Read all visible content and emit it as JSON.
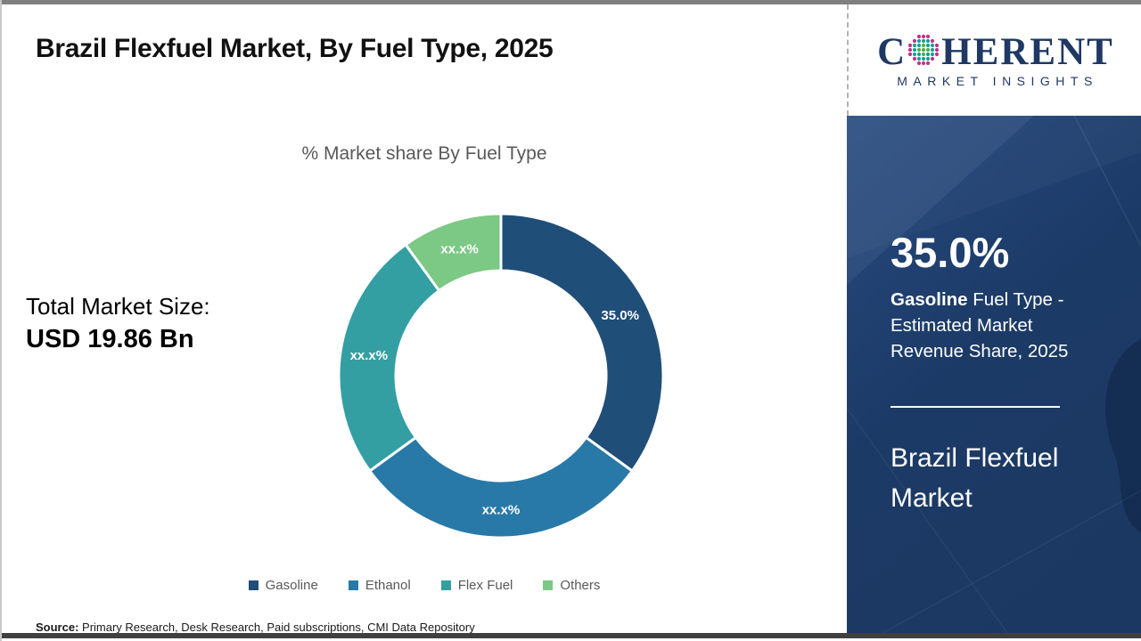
{
  "page": {
    "title": "Brazil Flexfuel Market, By Fuel Type, 2025",
    "source_label": "Source:",
    "source_text": " Primary Research, Desk Research, Paid subscriptions, CMI Data Repository"
  },
  "market_size": {
    "label": "Total Market Size:",
    "value": "USD 19.86 Bn"
  },
  "chart_data": {
    "type": "pie",
    "subtype": "donut",
    "title": "% Market share By Fuel Type",
    "unit": "%",
    "legend_position": "bottom",
    "series": [
      {
        "name": "Gasoline",
        "value": 35,
        "label": "35.0%",
        "color": "#1f4e79"
      },
      {
        "name": "Ethanol",
        "value": 30,
        "label": "xx.x%",
        "color": "#2879a8"
      },
      {
        "name": "Flex Fuel",
        "value": 25,
        "label": "xx.x%",
        "color": "#339fa2"
      },
      {
        "name": "Others",
        "value": 10,
        "label": "xx.x%",
        "color": "#7cc885"
      }
    ]
  },
  "sidebar": {
    "logo": {
      "brand_first": "C",
      "brand_rest": "HERENT",
      "brand_sub": "MARKET INSIGHTS"
    },
    "highlight_value": "35.0%",
    "caption_bold": "Gasoline",
    "caption_rest": " Fuel Type - Estimated Market Revenue Share, 2025",
    "panel_title": "Brazil Flexfuel Market",
    "panel_color": "#1c3a66",
    "accent_navy": "#1f3864"
  }
}
